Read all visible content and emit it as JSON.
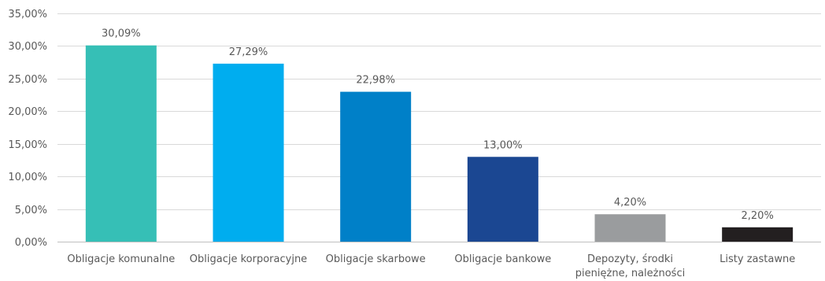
{
  "chart_data": {
    "type": "bar",
    "title": "",
    "xlabel": "",
    "ylabel": "",
    "categories": [
      [
        "Obligacje komunalne"
      ],
      [
        "Obligacje korporacyjne"
      ],
      [
        "Obligacje skarbowe"
      ],
      [
        "Obligacje bankowe"
      ],
      [
        "Depozyty, środki",
        "pieniężne, należności"
      ],
      [
        "Listy zastawne"
      ]
    ],
    "values": [
      30.09,
      27.29,
      22.98,
      13.0,
      4.2,
      2.2
    ],
    "data_labels": [
      "30,09%",
      "27,29%",
      "22,98%",
      "13,00%",
      "4,20%",
      "2,20%"
    ],
    "colors": [
      "#36bfb6",
      "#00adef",
      "#0080c8",
      "#1b4792",
      "#9a9c9e",
      "#231f20"
    ],
    "ylim": [
      0,
      35
    ],
    "yticks": [
      0,
      5,
      10,
      15,
      20,
      25,
      30,
      35
    ],
    "ytick_labels": [
      "0,00%",
      "5,00%",
      "10,00%",
      "15,00%",
      "20,00%",
      "25,00%",
      "30,00%",
      "35,00%"
    ],
    "grid": true,
    "legend": "none"
  }
}
